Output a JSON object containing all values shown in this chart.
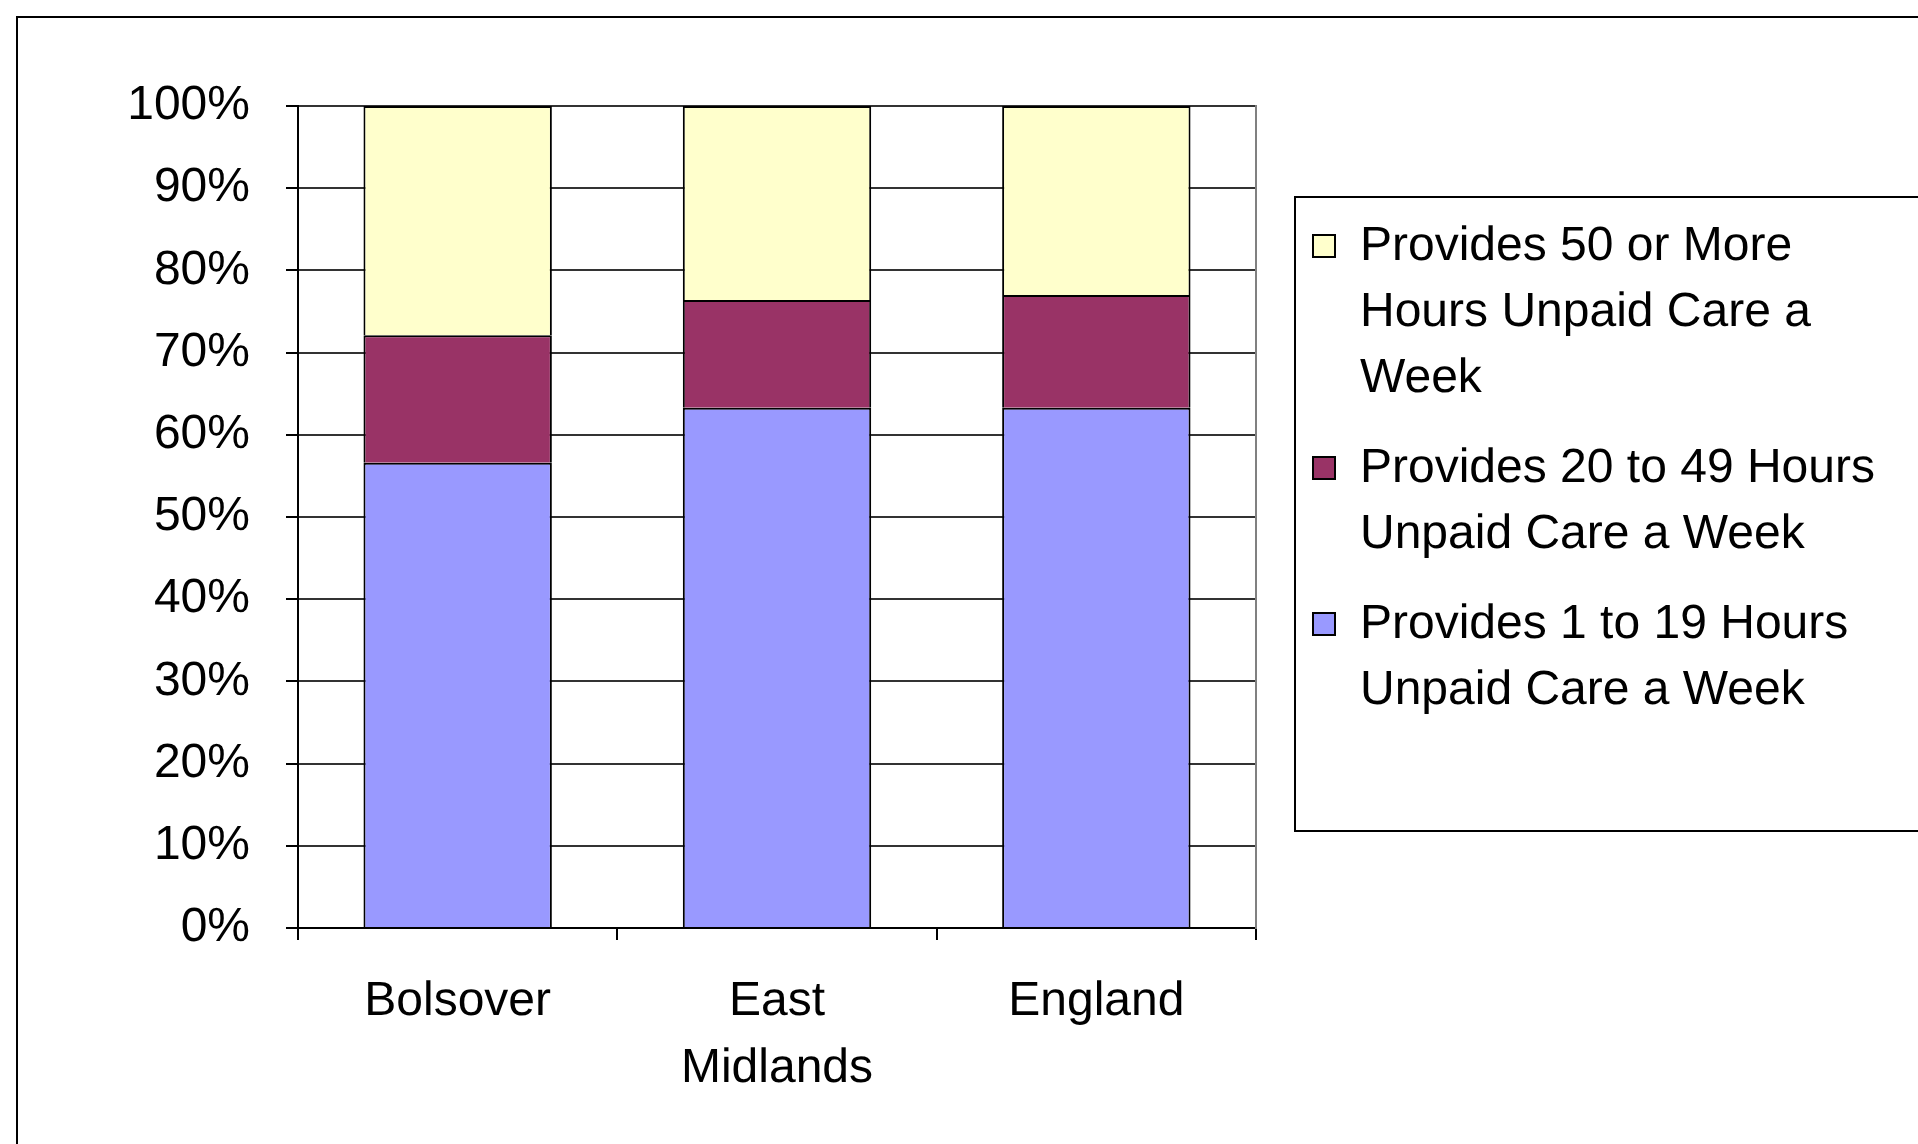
{
  "chart_data": {
    "type": "bar",
    "stacked": true,
    "categories": [
      "Bolsover",
      "East Midlands",
      "England"
    ],
    "series": [
      {
        "name": "Provides 1 to 19 Hours Unpaid Care a Week",
        "color": "#9999ff",
        "values": [
          56.6,
          63.3,
          63.3
        ]
      },
      {
        "name": "Provides 20 to 49 Hours Unpaid Care a Week",
        "color": "#993366",
        "values": [
          15.5,
          13.1,
          13.7
        ]
      },
      {
        "name": "Provides 50 or More Hours Unpaid Care a Week",
        "color": "#ffffcc",
        "values": [
          27.9,
          23.6,
          23.0
        ]
      }
    ],
    "ylim": [
      0,
      100
    ],
    "yticks": [
      {
        "value": 0,
        "label": "0%"
      },
      {
        "value": 10,
        "label": "10%"
      },
      {
        "value": 20,
        "label": "20%"
      },
      {
        "value": 30,
        "label": "30%"
      },
      {
        "value": 40,
        "label": "40%"
      },
      {
        "value": 50,
        "label": "50%"
      },
      {
        "value": 60,
        "label": "60%"
      },
      {
        "value": 70,
        "label": "70%"
      },
      {
        "value": 80,
        "label": "80%"
      },
      {
        "value": 90,
        "label": "90%"
      },
      {
        "value": 100,
        "label": "100%"
      }
    ],
    "grid": "y",
    "legend": "right"
  }
}
